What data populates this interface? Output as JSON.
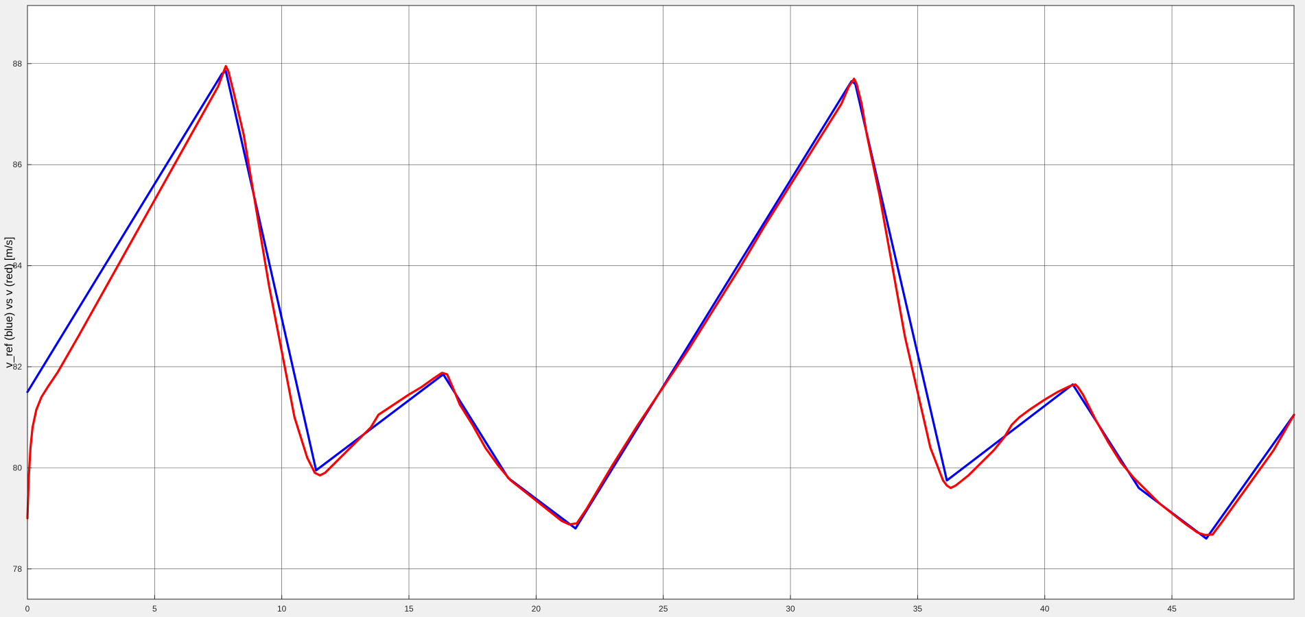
{
  "colors": {
    "background": "#f0f0f0",
    "axes_background": "#ffffff",
    "grid": "#262626",
    "reference": "#0000ff",
    "measured": "#ff0000"
  },
  "chart_data": {
    "type": "line",
    "title": "",
    "xlabel": "",
    "ylabel": "v_ref (blue) vs v (red) [m/s]",
    "xlim": [
      0,
      49.8
    ],
    "ylim": [
      77.4,
      89.15
    ],
    "xticks": [
      0,
      5,
      10,
      15,
      20,
      25,
      30,
      35,
      40,
      45
    ],
    "yticks": [
      78,
      80,
      82,
      84,
      86,
      88
    ],
    "grid": true,
    "legend": "none",
    "series": [
      {
        "color": "#0000ff",
        "x": [
          0,
          7.65,
          7.8,
          11.35,
          16.35,
          18.9,
          21.55,
          32.4,
          32.55,
          36.15,
          41.1,
          43.7,
          46.35,
          49.8
        ],
        "y": [
          81.5,
          87.8,
          87.85,
          79.95,
          81.85,
          79.8,
          78.8,
          87.65,
          87.6,
          79.75,
          81.65,
          79.6,
          78.6,
          81.05
        ]
      },
      {
        "color": "#ff0000",
        "x": [
          0,
          0.05,
          0.12,
          0.2,
          0.35,
          0.55,
          0.8,
          1.2,
          2,
          3,
          4,
          5,
          6,
          7,
          7.5,
          7.7,
          7.8,
          7.9,
          8.1,
          8.5,
          9,
          9.5,
          10,
          10.5,
          11,
          11.3,
          11.5,
          11.7,
          12,
          12.5,
          13,
          13.5,
          13.8,
          14.1,
          14.4,
          15,
          15.5,
          16,
          16.3,
          16.5,
          16.7,
          17,
          17.5,
          18,
          18.5,
          19,
          19.5,
          20,
          20.5,
          21,
          21.3,
          21.6,
          21.8,
          22,
          23,
          24,
          25,
          26,
          27,
          28,
          29,
          30,
          31,
          32,
          32.3,
          32.5,
          32.6,
          32.8,
          33,
          33.5,
          34,
          34.5,
          35,
          35.5,
          36,
          36.15,
          36.3,
          36.5,
          37,
          37.5,
          38,
          38.4,
          38.7,
          39,
          39.4,
          40,
          40.5,
          41,
          41.2,
          41.3,
          41.5,
          42,
          42.5,
          43,
          43.5,
          44,
          44.5,
          45,
          45.5,
          46,
          46.3,
          46.6,
          47,
          48,
          49,
          49.8
        ],
        "y": [
          79,
          79.8,
          80.4,
          80.8,
          81.15,
          81.4,
          81.6,
          81.9,
          82.6,
          83.5,
          84.4,
          85.3,
          86.2,
          87.1,
          87.55,
          87.82,
          87.95,
          87.85,
          87.45,
          86.6,
          85.1,
          83.6,
          82.3,
          81,
          80.2,
          79.9,
          79.85,
          79.9,
          80.05,
          80.3,
          80.55,
          80.8,
          81.05,
          81.15,
          81.25,
          81.45,
          81.6,
          81.78,
          81.88,
          81.85,
          81.62,
          81.25,
          80.85,
          80.4,
          80.05,
          79.75,
          79.55,
          79.35,
          79.15,
          78.95,
          78.88,
          78.9,
          79.05,
          79.2,
          80.05,
          80.85,
          81.6,
          82.35,
          83.15,
          83.95,
          84.8,
          85.6,
          86.4,
          87.2,
          87.55,
          87.7,
          87.6,
          87.2,
          86.6,
          85.4,
          84,
          82.6,
          81.5,
          80.4,
          79.75,
          79.65,
          79.6,
          79.65,
          79.85,
          80.1,
          80.35,
          80.6,
          80.85,
          81,
          81.15,
          81.35,
          81.5,
          81.62,
          81.65,
          81.6,
          81.45,
          80.95,
          80.5,
          80.1,
          79.8,
          79.55,
          79.3,
          79.1,
          78.9,
          78.72,
          78.67,
          78.68,
          78.95,
          79.65,
          80.35,
          81.05
        ]
      }
    ]
  }
}
